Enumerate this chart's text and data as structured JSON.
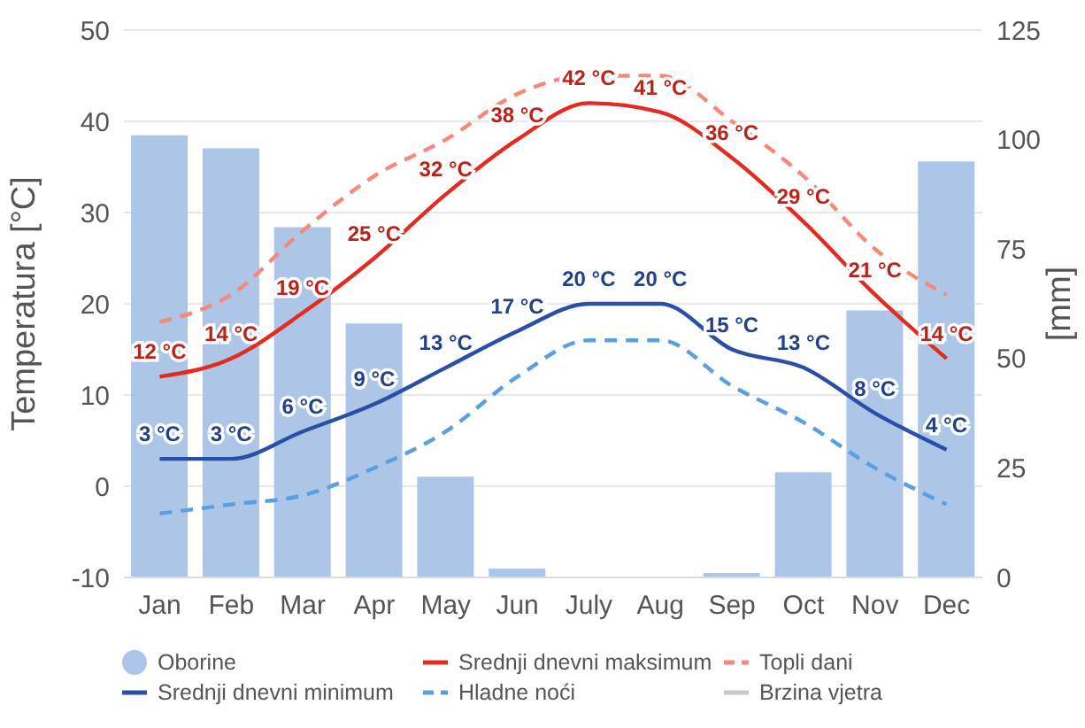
{
  "chart_data": {
    "type": "line",
    "categories": [
      "Jan",
      "Feb",
      "Mar",
      "Apr",
      "May",
      "Jun",
      "July",
      "Aug",
      "Sep",
      "Oct",
      "Nov",
      "Dec"
    ],
    "ylabel": "Temperatura [°C]",
    "y2label": "[mm]",
    "ylim": [
      -10,
      50
    ],
    "yticks": [
      -10,
      0,
      10,
      20,
      30,
      40,
      50
    ],
    "y2lim": [
      0,
      125
    ],
    "y2ticks": [
      0,
      25,
      50,
      75,
      100,
      125
    ],
    "grid": "y",
    "legend": "bottom",
    "marker": "none",
    "series": [
      {
        "name": "Oborine",
        "type": "bar",
        "axis": "y2",
        "color": "#adc6e8",
        "values": [
          101,
          98,
          80,
          58,
          23,
          2,
          0,
          0,
          1,
          24,
          61,
          95
        ]
      },
      {
        "name": "Srednji dnevni maksimum",
        "color": "#e32b20",
        "line_style": "solid",
        "values": [
          12,
          14,
          19,
          25,
          32,
          38,
          42,
          41,
          36,
          29,
          21,
          14
        ],
        "value_labels": [
          "12 °C",
          "14 °C",
          "19 °C",
          "25 °C",
          "32 °C",
          "38 °C",
          "42 °C",
          "41 °C",
          "36 °C",
          "29 °C",
          "21 °C",
          "14 °C"
        ]
      },
      {
        "name": "Topli dani",
        "color": "#f4897c",
        "line_style": "dashed",
        "values": [
          18,
          21,
          28,
          34,
          38,
          43,
          45,
          45,
          40,
          34,
          26,
          21
        ]
      },
      {
        "name": "Srednji dnevni minimum",
        "color": "#2b4fa6",
        "line_style": "solid",
        "values": [
          3,
          3,
          6,
          9,
          13,
          17,
          20,
          20,
          15,
          13,
          8,
          4
        ],
        "value_labels": [
          "3 °C",
          "3 °C",
          "6 °C",
          "9 °C",
          "13 °C",
          "17 °C",
          "20 °C",
          "20 °C",
          "15 °C",
          "13 °C",
          "8 °C",
          "4 °C"
        ]
      },
      {
        "name": "Hladne noći",
        "color": "#5b9fe0",
        "line_style": "dashed",
        "values": [
          -3,
          -2,
          -1,
          2,
          6,
          12,
          16,
          16,
          11,
          7,
          2,
          -2
        ]
      },
      {
        "name": "Brzina vjetra",
        "color": "#c8c8c8",
        "line_style": "solid",
        "values": [
          null,
          null,
          null,
          null,
          null,
          null,
          null,
          null,
          null,
          null,
          null,
          null
        ]
      }
    ]
  }
}
